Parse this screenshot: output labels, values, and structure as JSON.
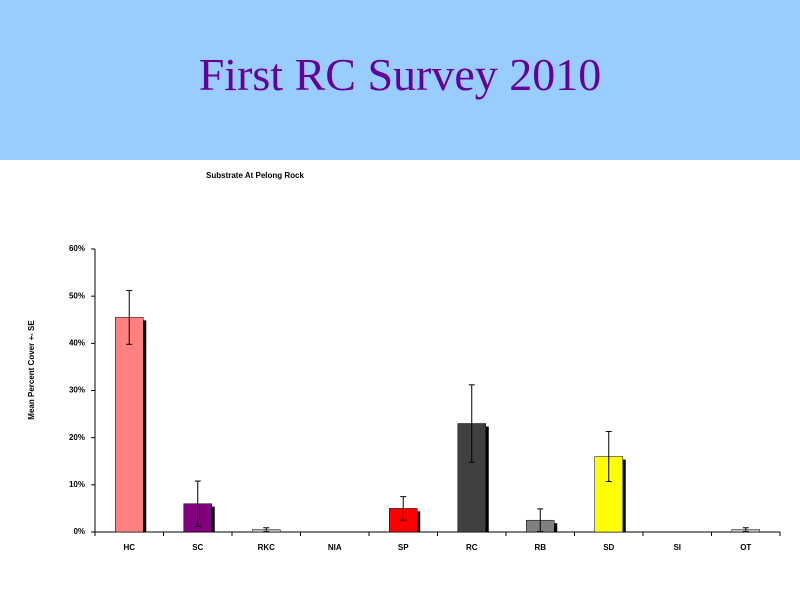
{
  "slide_title": "First RC Survey 2010",
  "chart_data": {
    "type": "bar",
    "title": "Substrate At Pelong Rock",
    "ylabel": "Mean Percent Cover +- SE",
    "categories": [
      "HC",
      "SC",
      "RKC",
      "NIA",
      "SP",
      "RC",
      "RB",
      "SD",
      "SI",
      "OT"
    ],
    "values": [
      45.5,
      6,
      0.5,
      0,
      5,
      23,
      2.5,
      16,
      0,
      0.5
    ],
    "errors": [
      5.7,
      4.8,
      0.4,
      0,
      2.5,
      8.2,
      2.4,
      5.3,
      0,
      0.4
    ],
    "colors": [
      "#ff8080",
      "#800080",
      "#c0c0c0",
      "#c0c0c0",
      "#ff0000",
      "#404040",
      "#808080",
      "#ffff00",
      "#c0c0c0",
      "#c0c0c0"
    ],
    "ylim": [
      0,
      60
    ],
    "yticks": [
      {
        "value": 0,
        "label": "0%"
      },
      {
        "value": 10,
        "label": "10%"
      },
      {
        "value": 20,
        "label": "20%"
      },
      {
        "value": 30,
        "label": "30%"
      },
      {
        "value": 40,
        "label": "40%"
      },
      {
        "value": 50,
        "label": "50%"
      },
      {
        "value": 60,
        "label": "60%"
      }
    ],
    "grid": false
  }
}
